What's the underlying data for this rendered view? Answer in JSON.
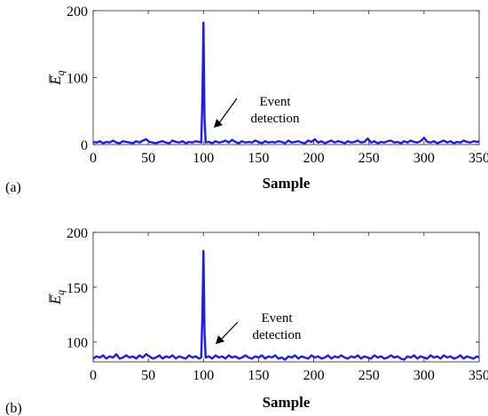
{
  "chart_data": [
    {
      "type": "line",
      "panel_label": "(a)",
      "xlabel": "Sample",
      "ylabel_base": "E",
      "ylabel_sub": "q",
      "xlim": [
        0,
        350
      ],
      "ylim": [
        0,
        200
      ],
      "xticks": [
        0,
        50,
        100,
        150,
        200,
        250,
        300,
        350
      ],
      "yticks": [
        0,
        100,
        200
      ],
      "grid": false,
      "series": [
        {
          "color": "#1a1aff",
          "x": [
            0,
            3,
            6,
            9,
            12,
            15,
            18,
            21,
            24,
            27,
            30,
            33,
            36,
            39,
            42,
            45,
            48,
            51,
            54,
            57,
            60,
            63,
            66,
            69,
            72,
            75,
            78,
            81,
            84,
            87,
            90,
            93,
            96,
            98,
            99,
            100,
            101,
            102,
            105,
            108,
            111,
            114,
            117,
            120,
            123,
            126,
            129,
            132,
            135,
            138,
            141,
            144,
            147,
            150,
            153,
            156,
            159,
            162,
            165,
            168,
            171,
            174,
            177,
            180,
            183,
            186,
            189,
            192,
            195,
            198,
            201,
            204,
            207,
            210,
            213,
            216,
            219,
            222,
            225,
            228,
            231,
            234,
            237,
            240,
            243,
            246,
            249,
            252,
            255,
            258,
            261,
            264,
            267,
            270,
            273,
            276,
            279,
            282,
            285,
            288,
            291,
            294,
            297,
            300,
            303,
            306,
            309,
            312,
            315,
            318,
            321,
            324,
            327,
            330,
            333,
            336,
            339,
            342,
            345,
            348,
            350
          ],
          "y": [
            4,
            3,
            5,
            2,
            4,
            3,
            6,
            3,
            2,
            5,
            4,
            3,
            2,
            5,
            3,
            6,
            8,
            4,
            3,
            2,
            4,
            5,
            3,
            2,
            6,
            4,
            3,
            5,
            2,
            4,
            3,
            5,
            4,
            3,
            60,
            182,
            40,
            3,
            4,
            2,
            5,
            3,
            4,
            6,
            3,
            7,
            4,
            2,
            5,
            3,
            4,
            3,
            6,
            4,
            2,
            5,
            3,
            4,
            3,
            5,
            4,
            2,
            6,
            3,
            4,
            5,
            3,
            2,
            6,
            4,
            8,
            3,
            5,
            2,
            4,
            6,
            3,
            5,
            4,
            2,
            5,
            3,
            4,
            6,
            3,
            4,
            9,
            3,
            5,
            2,
            4,
            3,
            5,
            6,
            3,
            4,
            2,
            5,
            3,
            6,
            4,
            3,
            5,
            10,
            4,
            3,
            5,
            2,
            4,
            6,
            3,
            5,
            2,
            4,
            3,
            6,
            4,
            3,
            5,
            4,
            5
          ]
        }
      ],
      "annotations": [
        {
          "text_line1": "Event",
          "text_line2": "detection",
          "x": 110,
          "y": 10
        }
      ]
    },
    {
      "type": "line",
      "panel_label": "(b)",
      "xlabel": "Sample",
      "ylabel_base": "E",
      "ylabel_sub": "q",
      "xlim": [
        0,
        350
      ],
      "ylim": [
        82,
        200
      ],
      "xticks": [
        0,
        50,
        100,
        150,
        200,
        250,
        300,
        350
      ],
      "yticks": [
        100,
        150,
        200
      ],
      "grid": false,
      "series": [
        {
          "color": "#1a1aff",
          "x": [
            0,
            3,
            6,
            9,
            12,
            15,
            18,
            21,
            24,
            27,
            30,
            33,
            36,
            39,
            42,
            45,
            48,
            51,
            54,
            57,
            60,
            63,
            66,
            69,
            72,
            75,
            78,
            81,
            84,
            87,
            90,
            93,
            96,
            98,
            99,
            100,
            101,
            102,
            105,
            108,
            111,
            114,
            117,
            120,
            123,
            126,
            129,
            132,
            135,
            138,
            141,
            144,
            147,
            150,
            153,
            156,
            159,
            162,
            165,
            168,
            171,
            174,
            177,
            180,
            183,
            186,
            189,
            192,
            195,
            198,
            201,
            204,
            207,
            210,
            213,
            216,
            219,
            222,
            225,
            228,
            231,
            234,
            237,
            240,
            243,
            246,
            249,
            252,
            255,
            258,
            261,
            264,
            267,
            270,
            273,
            276,
            279,
            282,
            285,
            288,
            291,
            294,
            297,
            300,
            303,
            306,
            309,
            312,
            315,
            318,
            321,
            324,
            327,
            330,
            333,
            336,
            339,
            342,
            345,
            348,
            350
          ],
          "y": [
            85,
            87,
            86,
            88,
            85,
            87,
            86,
            89,
            85,
            86,
            88,
            86,
            87,
            85,
            88,
            86,
            89,
            87,
            85,
            86,
            88,
            85,
            87,
            86,
            88,
            85,
            87,
            86,
            85,
            88,
            86,
            87,
            85,
            86,
            120,
            183,
            110,
            86,
            87,
            85,
            88,
            86,
            87,
            85,
            88,
            86,
            87,
            85,
            86,
            88,
            86,
            85,
            87,
            86,
            88,
            85,
            87,
            86,
            88,
            85,
            86,
            84,
            87,
            86,
            88,
            85,
            87,
            86,
            85,
            88,
            86,
            87,
            85,
            86,
            88,
            85,
            87,
            86,
            88,
            86,
            85,
            87,
            86,
            88,
            85,
            87,
            86,
            85,
            88,
            86,
            87,
            85,
            86,
            88,
            86,
            87,
            85,
            84,
            87,
            86,
            88,
            85,
            87,
            86,
            85,
            88,
            86,
            87,
            85,
            88,
            86,
            87,
            85,
            86,
            88,
            85,
            87,
            86,
            85,
            87,
            86
          ]
        }
      ],
      "annotations": [
        {
          "text_line1": "Event",
          "text_line2": "detection",
          "x": 110,
          "y": 88
        }
      ]
    }
  ]
}
